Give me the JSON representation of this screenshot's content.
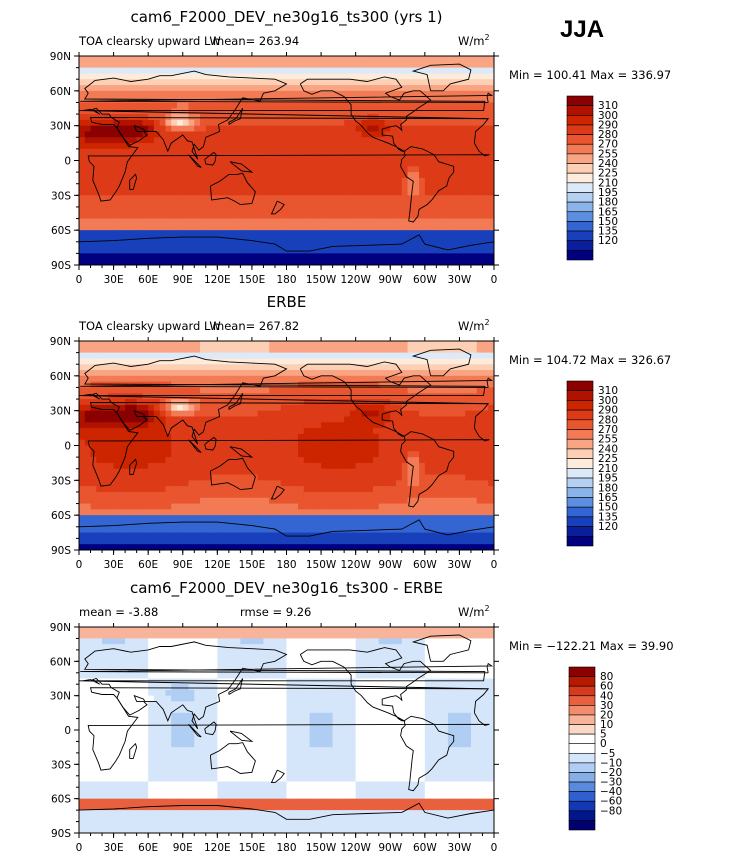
{
  "season_label": "JJA",
  "chart_data": [
    {
      "type": "heatmap",
      "title": "cam6_F2000_DEV_ne30g16_ts300 (yrs 1)",
      "left_label": "TOA clearsky upward LW",
      "center_label": "mean= 263.94",
      "units": "W/m",
      "units_sup": "2",
      "min_max": "Min = 100.41 Max = 336.97",
      "x_ticks": [
        "0",
        "30E",
        "60E",
        "90E",
        "120E",
        "150E",
        "180",
        "150W",
        "120W",
        "90W",
        "60W",
        "30W",
        "0"
      ],
      "y_ticks": [
        "90N",
        "60N",
        "30N",
        "0",
        "30S",
        "60S",
        "90S"
      ],
      "colorbar_labels": [
        "310",
        "300",
        "290",
        "280",
        "270",
        "255",
        "240",
        "225",
        "210",
        "195",
        "180",
        "165",
        "150",
        "135",
        "120"
      ],
      "colorbar_colors": [
        "#8b0000",
        "#b11200",
        "#cc2500",
        "#dd3b18",
        "#e8552e",
        "#f27a55",
        "#f9a583",
        "#fdd0b5",
        "#fdebdc",
        "#dbe9f9",
        "#b6d0f3",
        "#8ab3ea",
        "#5c8fdf",
        "#3366d3",
        "#1840bb",
        "#0a1e9c",
        "#000080"
      ]
    },
    {
      "type": "heatmap",
      "title": "ERBE",
      "left_label": "TOA clearsky upward LW",
      "center_label": "mean= 267.82",
      "units": "W/m",
      "units_sup": "2",
      "min_max": "Min = 104.72 Max = 326.67",
      "x_ticks": [
        "0",
        "30E",
        "60E",
        "90E",
        "120E",
        "150E",
        "180",
        "150W",
        "120W",
        "90W",
        "60W",
        "30W",
        "0"
      ],
      "y_ticks": [
        "90N",
        "60N",
        "30N",
        "0",
        "30S",
        "60S",
        "90S"
      ],
      "colorbar_labels": [
        "310",
        "300",
        "290",
        "280",
        "270",
        "255",
        "240",
        "225",
        "210",
        "195",
        "180",
        "165",
        "150",
        "135",
        "120"
      ],
      "colorbar_colors": [
        "#8b0000",
        "#b11200",
        "#cc2500",
        "#dd3b18",
        "#e8552e",
        "#f27a55",
        "#f9a583",
        "#fdd0b5",
        "#fdebdc",
        "#dbe9f9",
        "#b6d0f3",
        "#8ab3ea",
        "#5c8fdf",
        "#3366d3",
        "#1840bb",
        "#0a1e9c",
        "#000080"
      ]
    },
    {
      "type": "heatmap",
      "title": "cam6_F2000_DEV_ne30g16_ts300 - ERBE",
      "left_label": "mean =   -3.88",
      "center_label": "rmse =    9.26",
      "units": "W/m",
      "units_sup": "2",
      "min_max": "Min = −122.21 Max =  39.90",
      "x_ticks": [
        "0",
        "30E",
        "60E",
        "90E",
        "120E",
        "150E",
        "180",
        "150W",
        "120W",
        "90W",
        "60W",
        "30W",
        "0"
      ],
      "y_ticks": [
        "90N",
        "60N",
        "30N",
        "0",
        "30S",
        "60S",
        "90S"
      ],
      "colorbar_labels": [
        "80",
        "60",
        "40",
        "30",
        "20",
        "10",
        "5",
        "0",
        "−5",
        "−10",
        "−20",
        "−30",
        "−40",
        "−60",
        "−80"
      ],
      "colorbar_colors": [
        "#8b0000",
        "#b81a00",
        "#d63a1e",
        "#e8603e",
        "#f28c6c",
        "#f8b49a",
        "#fcd8c6",
        "#ffffff",
        "#ffffff",
        "#d6e6fa",
        "#b0cdf3",
        "#86afea",
        "#5a8ade",
        "#3060cf",
        "#1438b4",
        "#00168c",
        "#000070"
      ]
    }
  ]
}
